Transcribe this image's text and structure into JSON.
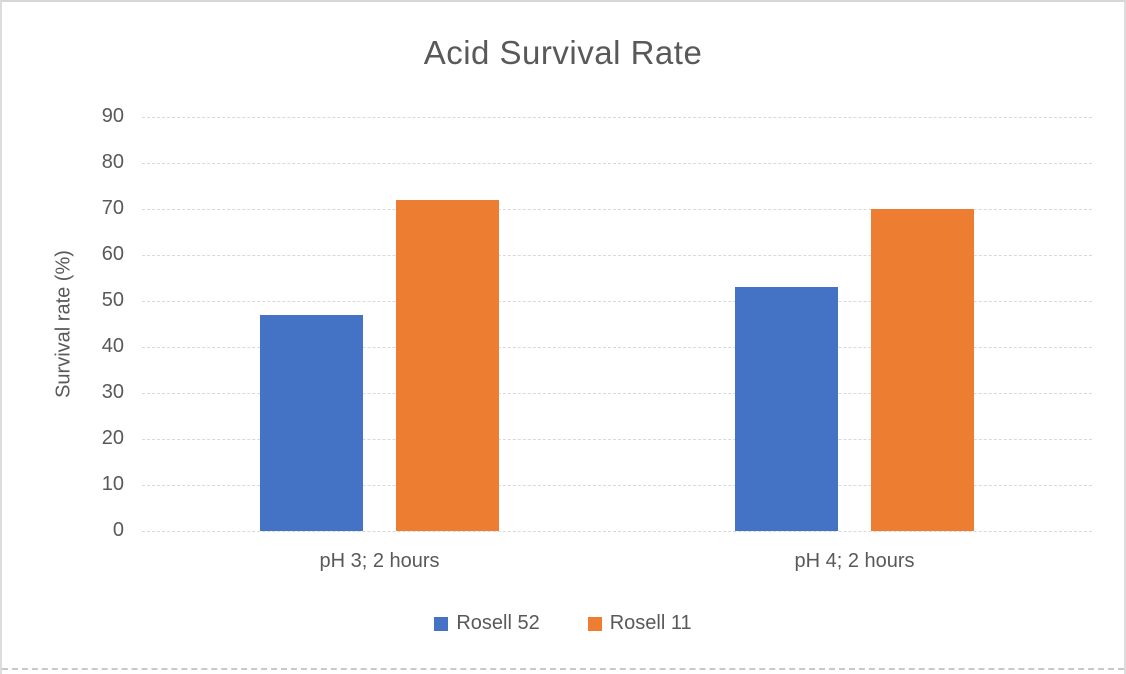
{
  "chart_data": {
    "type": "bar",
    "title": "Acid Survival Rate",
    "ylabel": "Survival rate (%)",
    "xlabel": "",
    "categories": [
      "pH 3; 2 hours",
      "pH 4; 2 hours"
    ],
    "series": [
      {
        "name": "Rosell 52",
        "color": "#4472C4",
        "values": [
          47,
          53
        ]
      },
      {
        "name": "Rosell 11",
        "color": "#ED7D31",
        "values": [
          72,
          70
        ]
      }
    ],
    "ylim": [
      0,
      90
    ],
    "yticks": [
      0,
      10,
      20,
      30,
      40,
      50,
      60,
      70,
      80,
      90
    ],
    "grid": "horizontal-dashed",
    "legend_position": "bottom",
    "colors": {
      "text": "#595959",
      "gridline": "#D9D9D9",
      "frame_border": "#D6D6D6"
    }
  }
}
